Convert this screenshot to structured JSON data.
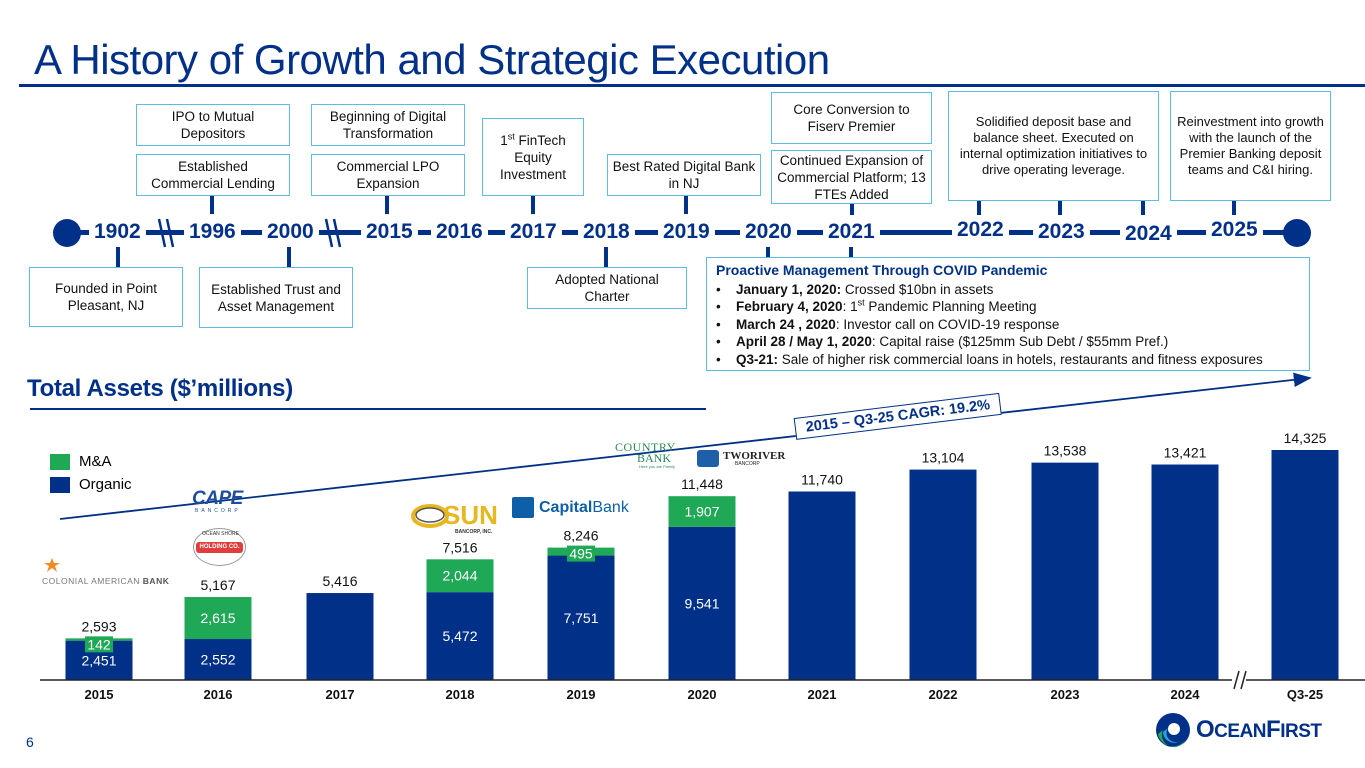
{
  "page": {
    "title": "A History of Growth and Strategic Execution",
    "page_number": "6",
    "brand": {
      "name_part1": "O",
      "name_part2": "CEAN",
      "name_part3": "F",
      "name_part4": "IRST"
    }
  },
  "timeline": {
    "years": [
      "1902",
      "1996",
      "2000",
      "2015",
      "2016",
      "2017",
      "2018",
      "2019",
      "2020",
      "2021",
      "2022",
      "2023",
      "2024",
      "2025"
    ],
    "events_above": [
      {
        "year": "1996",
        "text": "IPO to Mutual Depositors"
      },
      {
        "year": "1996",
        "text": "Established Commercial Lending"
      },
      {
        "year": "2015",
        "text": "Beginning of Digital Transformation"
      },
      {
        "year": "2015",
        "text": "Commercial LPO Expansion"
      },
      {
        "year": "2017",
        "sup": "st",
        "prefix": "1",
        "text": " FinTech Equity Investment"
      },
      {
        "year": "2019",
        "text": "Best Rated Digital Bank in NJ"
      },
      {
        "year": "2021",
        "text": "Core Conversion to Fiserv Premier"
      },
      {
        "year": "2021",
        "text": "Continued Expansion of Commercial Platform; 13 FTEs Added"
      },
      {
        "year": "2022-2024",
        "text": "Solidified deposit base and balance sheet. Executed on internal optimization initiatives to drive operating leverage."
      },
      {
        "year": "2025",
        "text": "Reinvestment into growth with the launch of the Premier Banking deposit teams and C&I hiring."
      }
    ],
    "events_below": [
      {
        "year": "1902",
        "text": "Founded in Point Pleasant, NJ"
      },
      {
        "year": "2000",
        "text": "Established Trust and Asset Management"
      },
      {
        "year": "2018",
        "text": "Adopted National Charter"
      }
    ],
    "covid": {
      "title": "Proactive Management Through COVID Pandemic",
      "items": [
        {
          "bold": "January 1, 2020:",
          "text": " Crossed $10bn in assets"
        },
        {
          "bold": "February 4, 2020",
          "text_pre": ": 1",
          "sup": "st",
          "text": " Pandemic Planning Meeting"
        },
        {
          "bold": "March 24 , 2020",
          "text": ": Investor call on COVID-19 response"
        },
        {
          "bold": "April 28 / May 1, 2020",
          "text": ": Capital raise ($125mm Sub Debt / $55mm Pref.)"
        },
        {
          "bold": "Q3-21:",
          "text": " Sale of higher risk commercial loans in hotels, restaurants and fitness exposures"
        }
      ],
      "bullet": "•"
    }
  },
  "chart_data": {
    "type": "bar",
    "stacked": true,
    "title": "Total Assets ($’millions)",
    "xlabel": "",
    "ylabel": "",
    "categories": [
      "2015",
      "2016",
      "2017",
      "2018",
      "2019",
      "2020",
      "2021",
      "2022",
      "2023",
      "2024",
      "Q3-25"
    ],
    "series": [
      {
        "name": "Organic",
        "color": "#003087",
        "values": [
          2451,
          2552,
          5416,
          5472,
          7751,
          9541,
          11740,
          13104,
          13538,
          13421,
          14325
        ]
      },
      {
        "name": "M&A",
        "color": "#1fa855",
        "values": [
          142,
          2615,
          0,
          2044,
          495,
          1907,
          0,
          0,
          0,
          0,
          0
        ]
      }
    ],
    "totals": [
      "2,593",
      "5,167",
      "5,416",
      "7,516",
      "8,246",
      "11,448",
      "11,740",
      "13,104",
      "13,538",
      "13,421",
      "14,325"
    ],
    "organic_labels": [
      "2,451",
      "2,552",
      "",
      "5,472",
      "7,751",
      "9,541",
      "",
      "",
      "",
      "",
      ""
    ],
    "mna_labels": [
      "142",
      "2,615",
      "",
      "2,044",
      "495",
      "1,907",
      "",
      "",
      "",
      "",
      ""
    ],
    "ylim": [
      0,
      16000
    ],
    "grid": false,
    "legend": {
      "placement": "top-left",
      "entries": [
        "M&A",
        "Organic"
      ]
    },
    "axis_break_between": [
      "2024",
      "Q3-25"
    ],
    "annotation": "2015 – Q3-25 CAGR: 19.2%",
    "acquisition_logos": [
      {
        "category": "2015",
        "name": "COLONIAL AMERICAN BANK"
      },
      {
        "category": "2016",
        "name": "CAPE BANCORP"
      },
      {
        "category": "2016",
        "name": "OCEAN SHORE HOLDING CO."
      },
      {
        "category": "2018",
        "name": "SUN BANCORP, INC."
      },
      {
        "category": "2019",
        "name": "Capital Bank of New Jersey"
      },
      {
        "category": "2020",
        "name": "COUNTRY BANK"
      },
      {
        "category": "2020",
        "name": "TWO RIVER BANCORP"
      }
    ]
  },
  "colors": {
    "primary": "#003087",
    "accent_green": "#1fa855",
    "box_border": "#5bbde4"
  }
}
